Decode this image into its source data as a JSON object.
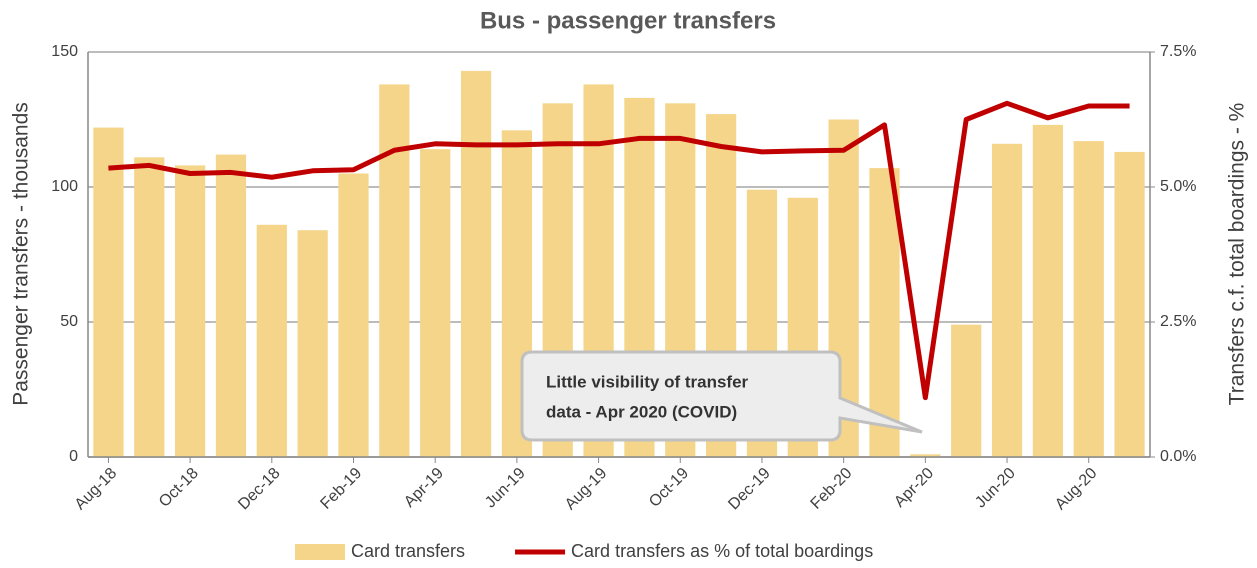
{
  "chart_data": {
    "type": "bar-line",
    "title": "Bus - passenger transfers",
    "y_label": "Passenger transfers - thousands",
    "y2_label": "Transfers c.f. total boardings - %",
    "categories": [
      "Aug-18",
      null,
      "Oct-18",
      null,
      "Dec-18",
      null,
      "Feb-19",
      null,
      "Apr-19",
      null,
      "Jun-19",
      null,
      "Aug-19",
      null,
      "Oct-19",
      null,
      "Dec-19",
      null,
      "Feb-20",
      null,
      "Apr-20",
      null,
      "Jun-20",
      null,
      "Aug-20",
      null
    ],
    "series": [
      {
        "name": "Card transfers",
        "color": "#f5d58a",
        "type": "bar",
        "values": [
          122,
          111,
          108,
          112,
          86,
          84,
          105,
          138,
          114,
          143,
          121,
          131,
          138,
          133,
          131,
          127,
          99,
          96,
          125,
          107,
          1,
          49,
          116,
          123,
          117,
          113
        ]
      },
      {
        "name": "Card transfers as % of total boardings",
        "color": "#c00000",
        "type": "line",
        "axis": "y2",
        "values": [
          5.35,
          5.4,
          5.25,
          5.27,
          5.18,
          5.3,
          5.32,
          5.68,
          5.8,
          5.78,
          5.78,
          5.8,
          5.8,
          5.9,
          5.9,
          5.75,
          5.65,
          5.67,
          5.68,
          6.15,
          1.1,
          6.25,
          6.55,
          6.28,
          6.5,
          6.5
        ]
      }
    ],
    "ylim": [
      0,
      150
    ],
    "yticks": [
      0,
      50,
      100,
      150
    ],
    "y2lim": [
      0,
      7.5
    ],
    "y2ticks": [
      {
        "value": 0,
        "label": "0.0%"
      },
      {
        "value": 2.5,
        "label": "2.5%"
      },
      {
        "value": 5,
        "label": "5.0%"
      },
      {
        "value": 7.5,
        "label": "7.5%"
      }
    ],
    "grid": true,
    "legend": "bottom",
    "annotation": [
      "Little visibility of transfer",
      "data - Apr 2020 (COVID)"
    ]
  }
}
